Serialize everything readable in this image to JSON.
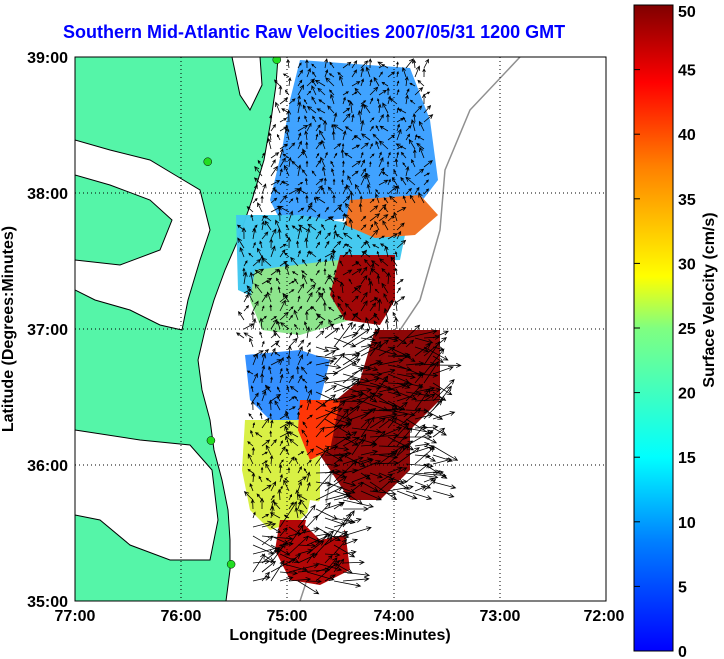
{
  "title": "Southern Mid-Atlantic Raw Velocities 2007/05/31 1200 GMT",
  "x_axis": {
    "label": "Longitude (Degrees:Minutes)",
    "ticks": [
      {
        "value": -77,
        "label": "77:00"
      },
      {
        "value": -76,
        "label": "76:00"
      },
      {
        "value": -75,
        "label": "75:00"
      },
      {
        "value": -74,
        "label": "74:00"
      },
      {
        "value": -73,
        "label": "73:00"
      },
      {
        "value": -72,
        "label": "72:00"
      }
    ],
    "range": [
      -77,
      -72
    ]
  },
  "y_axis": {
    "label": "Latitude (Degrees:Minutes)",
    "ticks": [
      {
        "value": 35,
        "label": "35:00"
      },
      {
        "value": 36,
        "label": "36:00"
      },
      {
        "value": 37,
        "label": "37:00"
      },
      {
        "value": 38,
        "label": "38:00"
      },
      {
        "value": 39,
        "label": "39:00"
      }
    ],
    "range": [
      35,
      39
    ]
  },
  "colorbar": {
    "label": "Surface Velocity (cm/s)",
    "min": 0,
    "max": 50,
    "ticks": [
      0,
      5,
      10,
      15,
      20,
      25,
      30,
      35,
      40,
      45,
      50
    ],
    "colormap": "jet"
  },
  "grid": true,
  "colors": {
    "land": "#55f5a8",
    "title": "#0000ff",
    "arrows": "#000000",
    "coast": "#000000",
    "bathymetry": "#909090",
    "stations": "#22dd22"
  },
  "stations": [
    {
      "lon": -75.1,
      "lat": 38.98
    },
    {
      "lon": -75.75,
      "lat": 38.23
    },
    {
      "lon": -75.72,
      "lat": 36.18
    },
    {
      "lon": -75.53,
      "lat": 35.27
    }
  ]
}
